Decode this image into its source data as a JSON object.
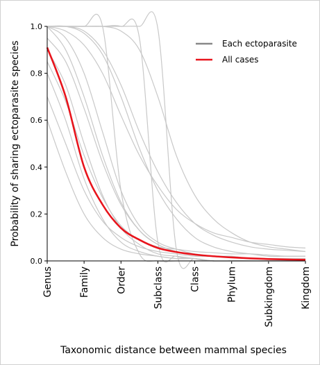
{
  "chart_data": {
    "type": "line",
    "ylabel": "Probability of sharing ectoparasite species",
    "xlabel": "Taxonomic distance between mammal species",
    "x": [
      0,
      0.5,
      1,
      1.5,
      2,
      2.5,
      3,
      3.5,
      4,
      4.5,
      5,
      5.5,
      6,
      6.5,
      7
    ],
    "xlim": [
      0,
      7
    ],
    "xticks": [
      {
        "value": 0,
        "label": "Genus"
      },
      {
        "value": 1,
        "label": "Family"
      },
      {
        "value": 2,
        "label": "Order"
      },
      {
        "value": 3,
        "label": "Subclass"
      },
      {
        "value": 4,
        "label": "Class"
      },
      {
        "value": 5,
        "label": "Phylum"
      },
      {
        "value": 6,
        "label": "Subkingdom"
      },
      {
        "value": 7,
        "label": "Kingdom"
      }
    ],
    "ylim": [
      0,
      1
    ],
    "yticks": [
      {
        "value": 0,
        "label": "0.0"
      },
      0.2,
      0.4,
      0.6,
      0.8,
      {
        "value": 1,
        "label": "1.0"
      }
    ],
    "legend": "upper right",
    "series": [
      {
        "name": "Each ectoparasite",
        "color": "#c8c8c8",
        "values": [
          [
            1,
            1,
            0.98,
            0.9,
            0.75,
            0.55,
            0.38,
            0.25,
            0.16,
            0.11,
            0.08,
            0.06,
            0.05,
            0.045,
            0.04
          ],
          [
            1,
            0.95,
            0.8,
            0.55,
            0.3,
            0.15,
            0.08,
            0.05,
            0.03,
            0.02,
            0.015,
            0.01,
            0.01,
            0.01,
            0.01
          ],
          [
            0.8,
            0.6,
            0.35,
            0.18,
            0.08,
            0.04,
            0.02,
            0.01,
            0.01,
            0,
            0,
            0,
            0,
            0,
            0
          ],
          [
            1,
            1,
            1,
            1,
            1,
            1,
            0.99,
            0.05,
            0.01,
            0,
            0,
            0,
            0,
            0,
            0
          ],
          [
            1,
            1,
            1,
            1,
            1,
            0.95,
            0.08,
            0.02,
            0.01,
            0,
            0,
            0,
            0,
            0,
            0
          ],
          [
            0.7,
            0.5,
            0.3,
            0.17,
            0.1,
            0.06,
            0.04,
            0.03,
            0.02,
            0.02,
            0.015,
            0.01,
            0.01,
            0.01,
            0.01
          ],
          [
            1,
            0.98,
            0.92,
            0.8,
            0.62,
            0.45,
            0.32,
            0.22,
            0.16,
            0.12,
            0.1,
            0.08,
            0.07,
            0.06,
            0.055
          ],
          [
            0.9,
            0.75,
            0.5,
            0.28,
            0.14,
            0.07,
            0.03,
            0.02,
            0.01,
            0,
            0,
            0,
            0,
            0,
            0
          ],
          [
            1,
            1,
            0.97,
            0.88,
            0.7,
            0.48,
            0.3,
            0.18,
            0.1,
            0.06,
            0.04,
            0.03,
            0.02,
            0.02,
            0.02
          ],
          [
            0.6,
            0.38,
            0.2,
            0.1,
            0.05,
            0.03,
            0.02,
            0.01,
            0.01,
            0,
            0,
            0,
            0,
            0,
            0
          ],
          [
            1,
            0.9,
            0.7,
            0.45,
            0.25,
            0.13,
            0.07,
            0.04,
            0.03,
            0.02,
            0.02,
            0.01,
            0.01,
            0.01,
            0.01
          ],
          [
            1,
            1,
            1,
            1,
            0.98,
            0.9,
            0.7,
            0.45,
            0.28,
            0.18,
            0.12,
            0.08,
            0.06,
            0.05,
            0.04
          ],
          [
            0.95,
            0.85,
            0.65,
            0.42,
            0.24,
            0.13,
            0.07,
            0.04,
            0.025,
            0.02,
            0.015,
            0.01,
            0.01,
            0.01,
            0.01
          ],
          [
            1,
            1,
            1,
            1,
            0.3,
            0.03,
            0,
            0,
            0,
            0,
            0,
            0,
            0,
            0,
            0
          ],
          [
            0.85,
            0.68,
            0.45,
            0.27,
            0.15,
            0.09,
            0.06,
            0.05,
            0.04,
            0.035,
            0.03,
            0.03,
            0.025,
            0.02,
            0.02
          ]
        ]
      },
      {
        "name": "All cases",
        "color": "#e8141c",
        "values": [
          0.91,
          0.7,
          0.4,
          0.24,
          0.14,
          0.09,
          0.055,
          0.038,
          0.027,
          0.02,
          0.015,
          0.011,
          0.008,
          0.006,
          0.005
        ]
      }
    ]
  }
}
